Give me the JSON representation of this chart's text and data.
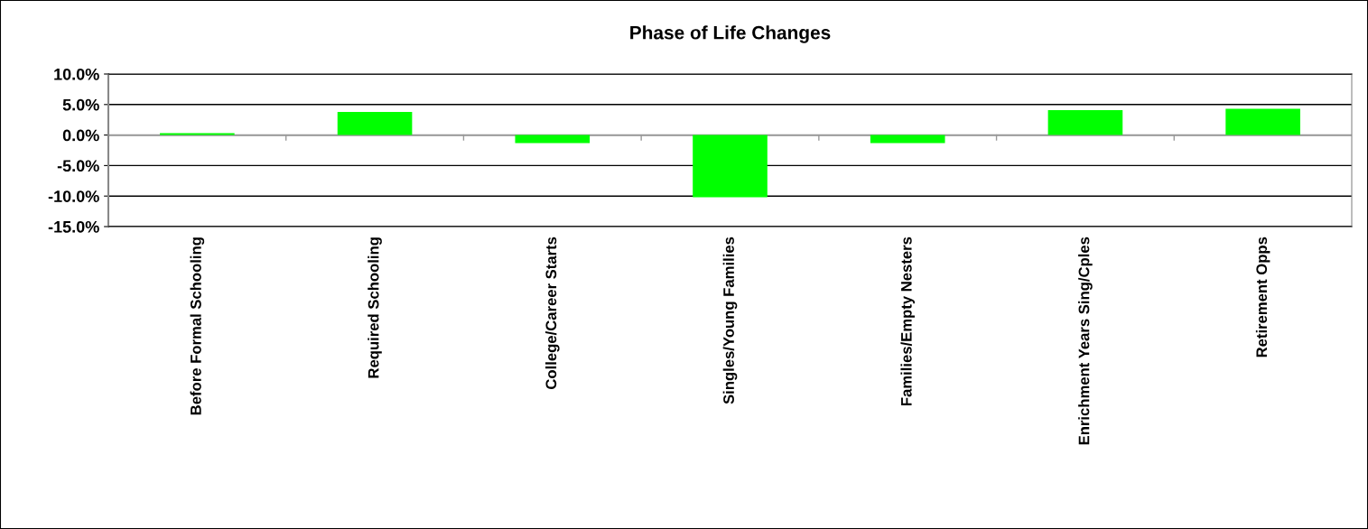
{
  "chart_data": {
    "type": "bar",
    "title": "Phase of Life Changes",
    "categories": [
      "Before Formal Schooling",
      "Required Schooling",
      "College/Career Starts",
      "Singles/Young Families",
      "Families/Empty Nesters",
      "Enrichment Years Sing/Cples",
      "Retirement Opps"
    ],
    "values": [
      0.3,
      3.8,
      -1.3,
      -10.2,
      -1.3,
      4.1,
      4.3
    ],
    "color": "#00ff00",
    "ylim": [
      -15,
      10
    ],
    "yticks": [
      {
        "value": -15,
        "label": "-15.0%"
      },
      {
        "value": -10,
        "label": "-10.0%"
      },
      {
        "value": -5,
        "label": "-5.0%"
      },
      {
        "value": 0,
        "label": "0.0%"
      },
      {
        "value": 5,
        "label": "5.0%"
      },
      {
        "value": 10,
        "label": "10.0%"
      }
    ],
    "grid": "y"
  }
}
